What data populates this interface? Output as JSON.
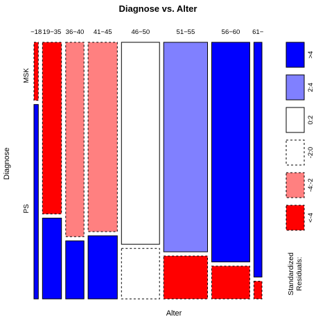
{
  "chart_data": {
    "type": "mosaic",
    "title": "Diagnose vs. Alter",
    "xlabel": "Alter",
    "ylabel": "Diagnose",
    "x_categories": [
      "−18",
      "19−35",
      "36−40",
      "41−45",
      "46−50",
      "51−55",
      "56−60",
      "61−"
    ],
    "y_categories": [
      "MSK",
      "PS"
    ],
    "column_widths": [
      6,
      26,
      25,
      40,
      52,
      60,
      52,
      11
    ],
    "cells": [
      {
        "alter": "−18",
        "msk": 0.23,
        "ps": 0.77,
        "msk_class": "<-4",
        "ps_class": ">4"
      },
      {
        "alter": "19−35",
        "msk": 0.68,
        "ps": 0.32,
        "msk_class": "<-4",
        "ps_class": ">4"
      },
      {
        "alter": "36−40",
        "msk": 0.77,
        "ps": 0.23,
        "msk_class": "-4:-2",
        "ps_class": ">4"
      },
      {
        "alter": "41−45",
        "msk": 0.75,
        "ps": 0.25,
        "msk_class": "-4:-2",
        "ps_class": ">4"
      },
      {
        "alter": "46−50",
        "msk": 0.8,
        "ps": 0.2,
        "msk_class": "0:2",
        "ps_class": "-2:0"
      },
      {
        "alter": "51−55",
        "msk": 0.83,
        "ps": 0.17,
        "msk_class": "2:4",
        "ps_class": "<-4"
      },
      {
        "alter": "56−60",
        "msk": 0.87,
        "ps": 0.13,
        "msk_class": ">4",
        "ps_class": "<-4"
      },
      {
        "alter": "61−",
        "msk": 0.93,
        "ps": 0.07,
        "msk_class": ">4",
        "ps_class": "<-4"
      }
    ],
    "legend": {
      "title_lines": [
        "Standardized",
        "Residuals:"
      ],
      "entries": [
        {
          "label": ">4",
          "fill": "#0000ff",
          "dashed": false
        },
        {
          "label": "2:4",
          "fill": "#8080ff",
          "dashed": false
        },
        {
          "label": "0:2",
          "fill": "#ffffff",
          "dashed": false
        },
        {
          "label": "-2:0",
          "fill": "#ffffff",
          "dashed": true
        },
        {
          "label": "-4:-2",
          "fill": "#ff8080",
          "dashed": true
        },
        {
          "label": "<-4",
          "fill": "#ff0000",
          "dashed": true
        }
      ]
    }
  }
}
